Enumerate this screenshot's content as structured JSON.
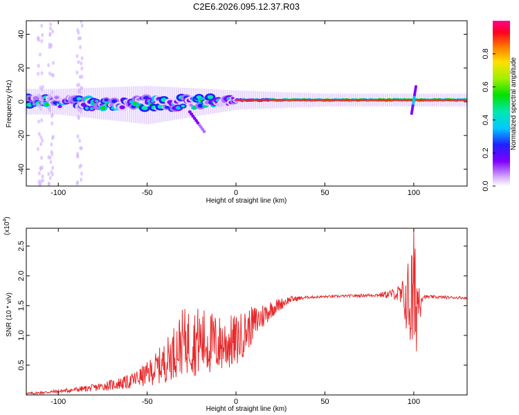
{
  "title": "C2E6.2026.095.12.37.R03",
  "chart_data": [
    {
      "type": "heatmap",
      "xlabel": "Height of straight line (km)",
      "ylabel": "Frequency (Hz)",
      "xlim": [
        -118,
        130
      ],
      "ylim": [
        -50,
        48
      ],
      "xticks": [
        -100,
        -50,
        0,
        50,
        100
      ],
      "yticks": [
        -40,
        -20,
        0,
        20,
        40
      ],
      "colorbar": {
        "label": "Normalized spectral amplitude",
        "range": [
          0,
          1
        ],
        "ticks": [
          "0.0",
          "0.2",
          "0.4",
          "0.6",
          "0.8"
        ]
      },
      "description_points": [
        {
          "x": -100,
          "f_center": 0,
          "band_halfwidth": 4
        },
        {
          "x": -50,
          "f_center": -2,
          "band_halfwidth": 6
        },
        {
          "x": -20,
          "f_center": -18,
          "feature": "descending tail"
        },
        {
          "x": 0,
          "f_center": 1,
          "band_halfwidth": 3
        },
        {
          "x": 50,
          "f_center": 1,
          "band_halfwidth": 2
        },
        {
          "x": 100,
          "f_center": 1,
          "feature": "spike"
        }
      ]
    },
    {
      "type": "line",
      "series_name": "SNR",
      "color": "#e8282a",
      "xlabel": "Height of straight line (km)",
      "ylabel": "SNR (10 * v/v)",
      "y_multiplier": "(x10",
      "y_multiplier_exp": "4",
      "y_multiplier_close": ")",
      "xlim": [
        -118,
        130
      ],
      "ylim": [
        0,
        2.8
      ],
      "xticks": [
        -100,
        -50,
        0,
        50,
        100
      ],
      "yticks": [
        0.5,
        1.0,
        1.5,
        2.0,
        2.5
      ],
      "ytick_labels": [
        "0.5",
        "1.0",
        "1.5",
        "2.0",
        "2.5"
      ],
      "envelope_x": [
        -118,
        -100,
        -80,
        -60,
        -50,
        -40,
        -30,
        -20,
        -10,
        0,
        10,
        20,
        30,
        40,
        60,
        80,
        90,
        95,
        100,
        103,
        105,
        130
      ],
      "envelope_y": [
        0.02,
        0.06,
        0.12,
        0.22,
        0.35,
        0.55,
        0.9,
        0.9,
        0.85,
        0.9,
        1.2,
        1.45,
        1.6,
        1.64,
        1.66,
        1.68,
        1.7,
        1.6,
        1.55,
        1.62,
        1.65,
        1.63
      ],
      "noise_amp_y": [
        0.02,
        0.03,
        0.06,
        0.12,
        0.2,
        0.35,
        0.55,
        0.6,
        0.5,
        0.45,
        0.3,
        0.15,
        0.06,
        0.02,
        0.02,
        0.03,
        0.1,
        0.4,
        1.3,
        0.5,
        0.03,
        0.02
      ]
    }
  ]
}
